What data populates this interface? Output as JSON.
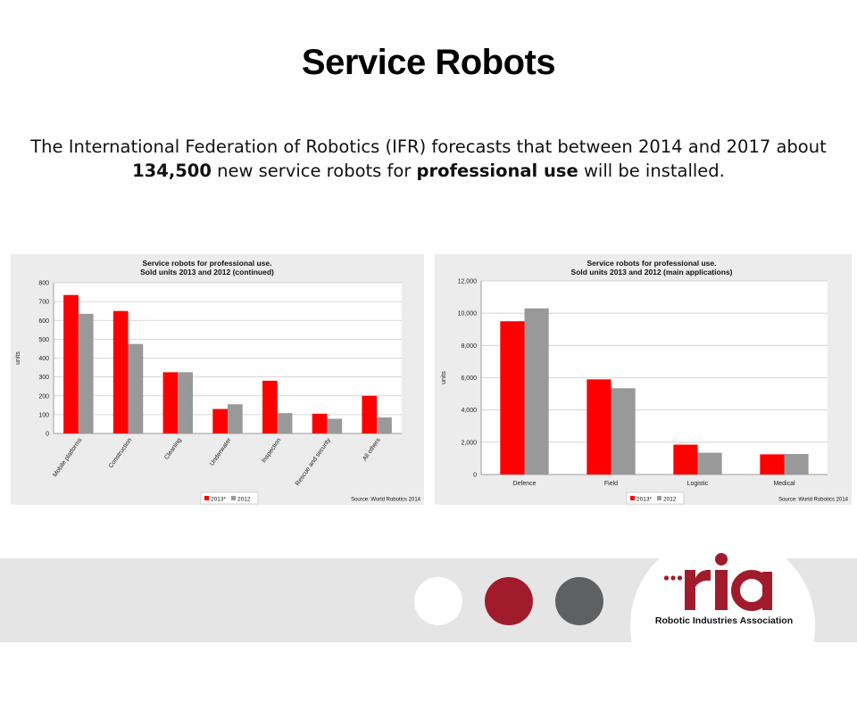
{
  "slide": {
    "title": "Service Robots",
    "intro": {
      "part1": "The International Federation of Robotics (IFR) forecasts that between 2014 and 2017 about ",
      "bold1": "134,500",
      "part2": " new service robots for ",
      "bold2": "professional use",
      "part3": " will be installed."
    }
  },
  "logo": {
    "wordmark": "ria",
    "caption": "Robotic Industries Association",
    "colors": {
      "accent": "#a01c2c",
      "dark": "#5f6062",
      "light": "#ffffff"
    }
  },
  "chart_data": [
    {
      "type": "bar",
      "title": "Service robots for professional use.",
      "subtitle": "Sold units 2013 and 2012 (continued)",
      "ylabel": "units",
      "xlabel": "",
      "ylim": [
        0,
        800
      ],
      "yticks": [
        0,
        100,
        200,
        300,
        400,
        500,
        600,
        700,
        800
      ],
      "ytick_labels": [
        "0",
        "100",
        "200",
        "300",
        "400",
        "500",
        "600",
        "700",
        "800"
      ],
      "categories": [
        "Mobile platforms",
        "Construction",
        "Cleaning",
        "Underwater",
        "Inspection",
        "Rescue and security",
        "All others"
      ],
      "series": [
        {
          "name": "2013*",
          "color": "#ff0000",
          "values": [
            735,
            650,
            325,
            130,
            280,
            105,
            200
          ]
        },
        {
          "name": "2012",
          "color": "#999999",
          "values": [
            635,
            475,
            325,
            155,
            108,
            78,
            85
          ]
        }
      ],
      "grid": true,
      "legend": "bottom-center",
      "source": "Source: World Robotics 2014"
    },
    {
      "type": "bar",
      "title": "Service robots for professional use.",
      "subtitle": "Sold units 2013 and 2012 (main applications)",
      "ylabel": "units",
      "xlabel": "",
      "ylim": [
        0,
        12000
      ],
      "yticks": [
        0,
        2000,
        4000,
        6000,
        8000,
        10000,
        12000
      ],
      "ytick_labels": [
        "0",
        "2,000",
        "4,000",
        "6,000",
        "8,000",
        "10,000",
        "12,000"
      ],
      "categories": [
        "Defence",
        "Field",
        "Logistic",
        "Medical"
      ],
      "series": [
        {
          "name": "2013*",
          "color": "#ff0000",
          "values": [
            9500,
            5900,
            1850,
            1250
          ]
        },
        {
          "name": "2012",
          "color": "#999999",
          "values": [
            10300,
            5350,
            1350,
            1270
          ]
        }
      ],
      "grid": true,
      "legend": "bottom-center",
      "source": "Source: World Robotics 2014"
    }
  ]
}
